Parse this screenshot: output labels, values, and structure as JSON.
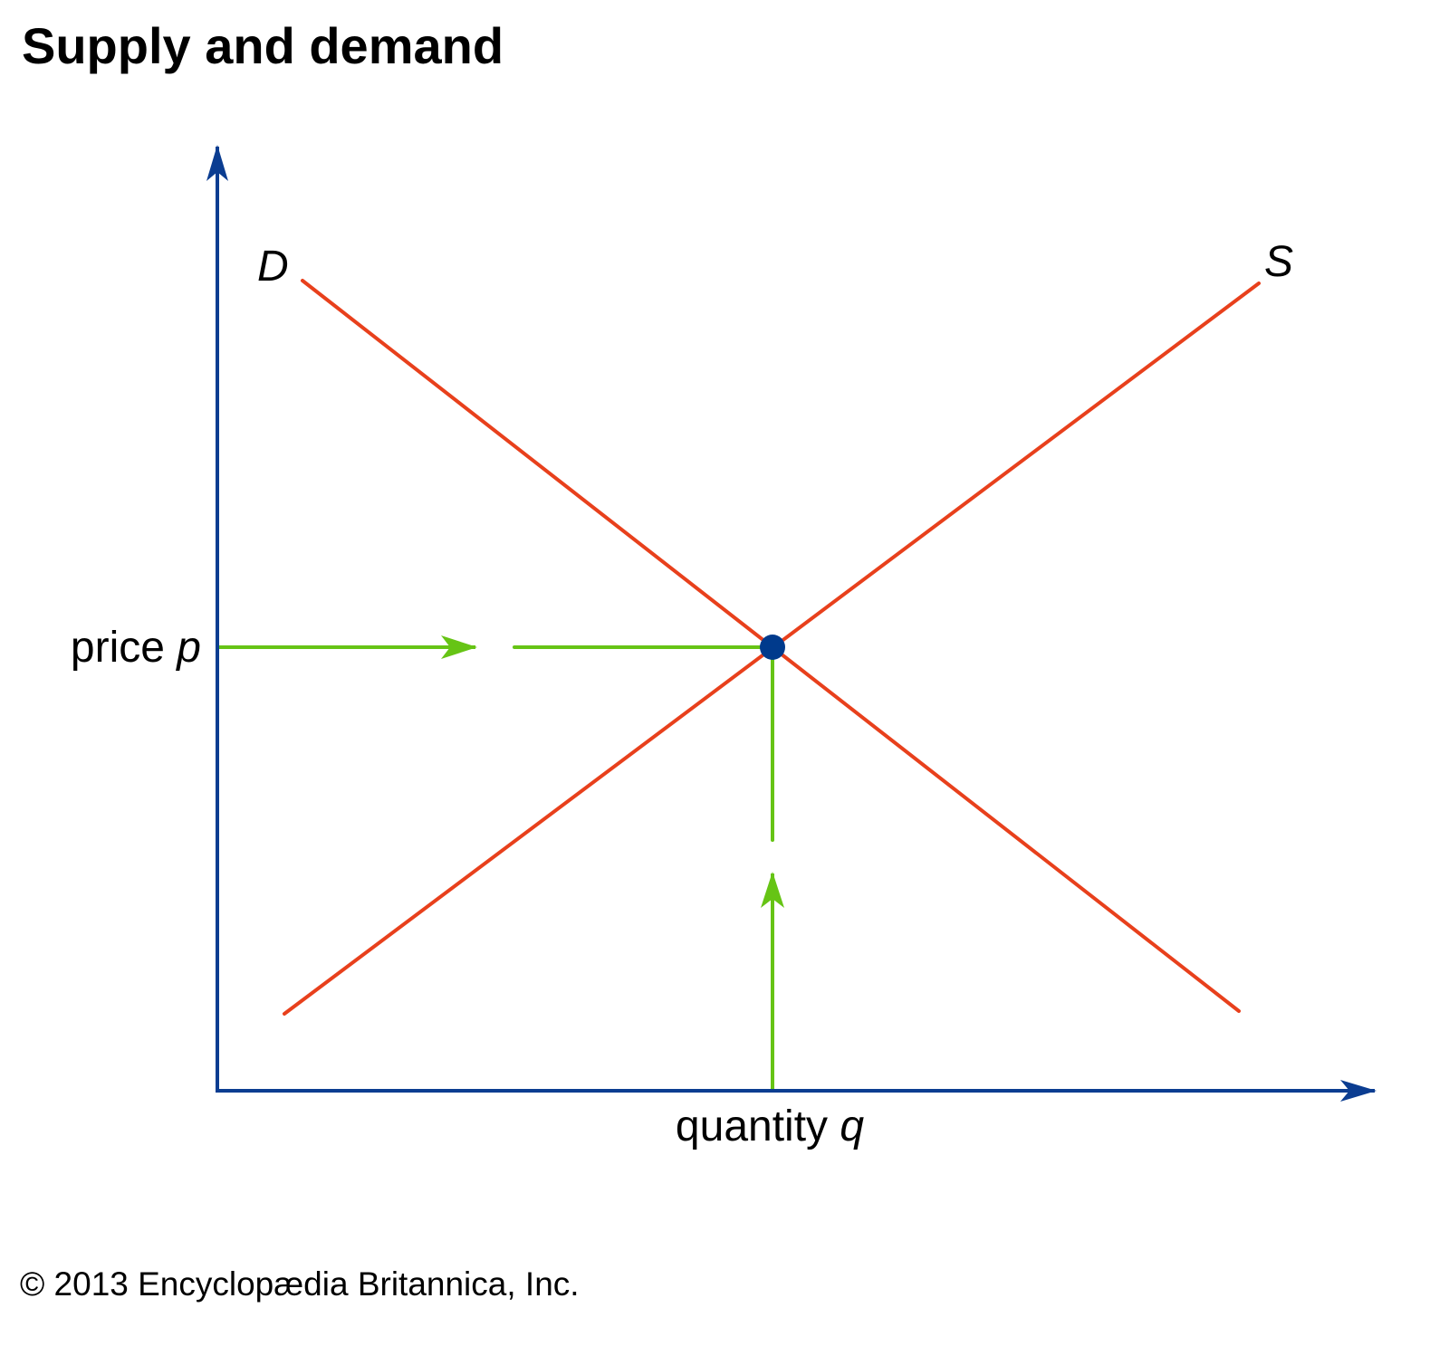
{
  "title": "Supply and demand",
  "curves": {
    "demand_label": "D",
    "supply_label": "S"
  },
  "axes": {
    "y_label_text": "price ",
    "y_label_var": "p",
    "x_label_text": "quantity ",
    "x_label_var": "q"
  },
  "copyright": "© 2013 Encyclopædia Britannica, Inc.",
  "colors": {
    "axes": "#0b3d91",
    "curves": "#e8401c",
    "guides": "#66c415",
    "equilibrium": "#003a8c"
  }
}
